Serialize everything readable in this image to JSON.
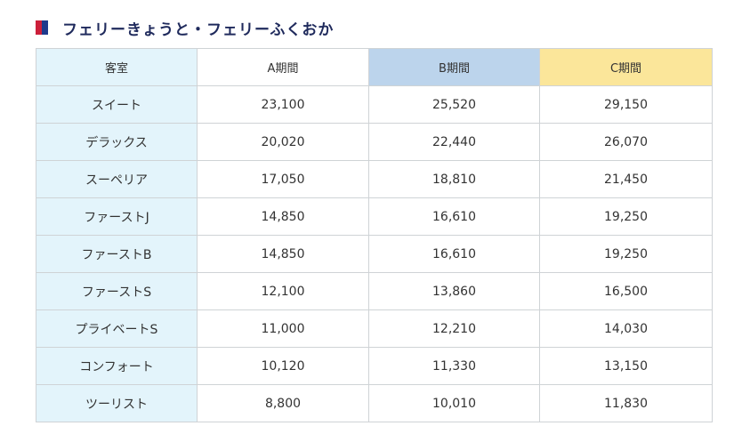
{
  "heading": {
    "title": "フェリーきょうと・フェリーふくおか",
    "marker_colors": [
      "#cc1f3a",
      "#1f3a8c"
    ]
  },
  "colors": {
    "room_bg": "#e3f4fb",
    "header_a_bg": "#e3f4fb",
    "header_b_bg": "#bcd4ec",
    "header_c_bg": "#fbe69a",
    "border": "#cfd3d6"
  },
  "table": {
    "headers": [
      "客室",
      "A期間",
      "B期間",
      "C期間"
    ],
    "rows": [
      {
        "room": "スイート",
        "a": "23,100",
        "b": "25,520",
        "c": "29,150"
      },
      {
        "room": "デラックス",
        "a": "20,020",
        "b": "22,440",
        "c": "26,070"
      },
      {
        "room": "スーペリア",
        "a": "17,050",
        "b": "18,810",
        "c": "21,450"
      },
      {
        "room": "ファーストJ",
        "a": "14,850",
        "b": "16,610",
        "c": "19,250"
      },
      {
        "room": "ファーストB",
        "a": "14,850",
        "b": "16,610",
        "c": "19,250"
      },
      {
        "room": "ファーストS",
        "a": "12,100",
        "b": "13,860",
        "c": "16,500"
      },
      {
        "room": "プライベートS",
        "a": "11,000",
        "b": "12,210",
        "c": "14,030"
      },
      {
        "room": "コンフォート",
        "a": "10,120",
        "b": "11,330",
        "c": "13,150"
      },
      {
        "room": "ツーリスト",
        "a": "8,800",
        "b": "10,010",
        "c": "11,830"
      }
    ]
  }
}
